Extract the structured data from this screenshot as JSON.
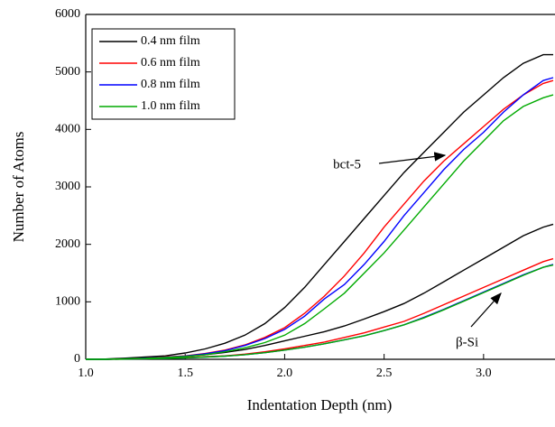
{
  "chart_data": {
    "type": "line",
    "xlabel": "Indentation Depth (nm)",
    "ylabel": "Number of Atoms",
    "annotations": [
      "bct-5",
      "β-Si"
    ],
    "x": [
      1.0,
      1.1,
      1.2,
      1.3,
      1.4,
      1.5,
      1.6,
      1.7,
      1.8,
      1.9,
      2.0,
      2.1,
      2.2,
      2.3,
      2.4,
      2.5,
      2.6,
      2.7,
      2.8,
      2.9,
      3.0,
      3.1,
      3.2,
      3.3,
      3.35
    ],
    "xlim": [
      1.0,
      3.35
    ],
    "xticks": [
      {
        "value": 1.0,
        "label": "1.0"
      },
      {
        "value": 1.5,
        "label": "1.5"
      },
      {
        "value": 2.0,
        "label": "2.0"
      },
      {
        "value": 2.5,
        "label": "2.5"
      },
      {
        "value": 3.0,
        "label": "3.0"
      }
    ],
    "ylim": [
      0,
      6000
    ],
    "yticks": [
      0,
      1000,
      2000,
      3000,
      4000,
      5000,
      6000
    ],
    "legend": "upper left",
    "series": [
      {
        "name": "0.4 nm film",
        "color": "#000000",
        "bct5_values": [
          0,
          5,
          20,
          40,
          60,
          110,
          180,
          280,
          420,
          620,
          900,
          1250,
          1650,
          2050,
          2450,
          2850,
          3250,
          3600,
          3950,
          4300,
          4600,
          4900,
          5150,
          5300,
          5300
        ],
        "beta_si_values": [
          0,
          5,
          10,
          20,
          30,
          50,
          80,
          120,
          170,
          240,
          320,
          400,
          480,
          580,
          700,
          830,
          970,
          1150,
          1350,
          1550,
          1750,
          1950,
          2150,
          2300,
          2350
        ]
      },
      {
        "name": "0.6 nm film",
        "color": "#ff0000",
        "bct5_values": [
          0,
          0,
          10,
          20,
          40,
          60,
          100,
          160,
          250,
          380,
          550,
          800,
          1100,
          1450,
          1850,
          2300,
          2700,
          3100,
          3450,
          3750,
          4050,
          4350,
          4600,
          4800,
          4850
        ],
        "beta_si_values": [
          0,
          0,
          5,
          10,
          20,
          30,
          45,
          60,
          90,
          130,
          180,
          240,
          300,
          380,
          460,
          560,
          660,
          800,
          950,
          1100,
          1250,
          1400,
          1550,
          1700,
          1750
        ]
      },
      {
        "name": "0.8 nm film",
        "color": "#0000ff",
        "bct5_values": [
          0,
          0,
          10,
          20,
          35,
          55,
          95,
          150,
          240,
          360,
          520,
          750,
          1050,
          1300,
          1650,
          2050,
          2500,
          2900,
          3300,
          3650,
          3950,
          4300,
          4600,
          4850,
          4900
        ],
        "beta_si_values": [
          0,
          0,
          5,
          10,
          15,
          25,
          40,
          55,
          80,
          115,
          160,
          210,
          270,
          340,
          410,
          500,
          600,
          730,
          870,
          1020,
          1170,
          1320,
          1470,
          1600,
          1650
        ]
      },
      {
        "name": "1.0 nm film",
        "color": "#00aa00",
        "bct5_values": [
          0,
          0,
          10,
          15,
          30,
          50,
          80,
          130,
          200,
          290,
          420,
          620,
          880,
          1150,
          1500,
          1850,
          2250,
          2650,
          3050,
          3450,
          3800,
          4150,
          4400,
          4550,
          4600
        ],
        "beta_si_values": [
          0,
          0,
          5,
          10,
          15,
          25,
          40,
          55,
          80,
          115,
          160,
          210,
          270,
          340,
          410,
          500,
          600,
          720,
          860,
          1010,
          1160,
          1310,
          1460,
          1600,
          1640
        ]
      }
    ]
  }
}
